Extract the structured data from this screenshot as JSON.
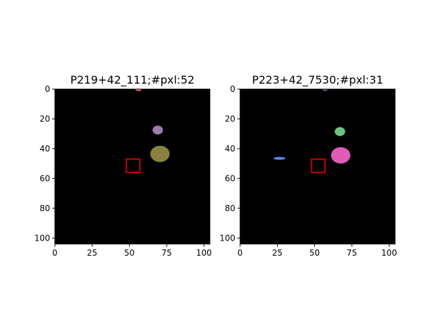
{
  "chart_data": [
    {
      "type": "heatmap",
      "title": "P219+42_111;#pxl:52",
      "xlim": [
        0,
        104
      ],
      "ylim": [
        104,
        0
      ],
      "xticks": [
        0,
        25,
        50,
        75,
        100
      ],
      "yticks": [
        0,
        20,
        40,
        60,
        80,
        100
      ],
      "background": "#000000",
      "blobs": [
        {
          "color": "#e06c6c",
          "cx": 56,
          "cy": 0.5,
          "rx": 2.0,
          "ry": 0.8
        },
        {
          "color": "#9a7fa8",
          "cx": 69,
          "cy": 27.5,
          "rx": 3.5,
          "ry": 3.0
        },
        {
          "color": "#8a8040",
          "cx": 70.5,
          "cy": 43.5,
          "rx": 6.5,
          "ry": 5.5
        }
      ],
      "marker": {
        "type": "rectangle",
        "color": "#cc0000",
        "x": [
          48,
          57
        ],
        "y": [
          47,
          56
        ]
      }
    },
    {
      "type": "heatmap",
      "title": "P223+42_7530;#pxl:31",
      "xlim": [
        0,
        104
      ],
      "ylim": [
        104,
        0
      ],
      "xticks": [
        0,
        25,
        50,
        75,
        100
      ],
      "yticks": [
        0,
        20,
        40,
        60,
        80,
        100
      ],
      "background": "#000000",
      "blobs": [
        {
          "color": "#4a6a9a",
          "cx": 57,
          "cy": 0.5,
          "rx": 1.5,
          "ry": 0.8
        },
        {
          "color": "#6cc47c",
          "cx": 67,
          "cy": 28.5,
          "rx": 3.5,
          "ry": 3.0
        },
        {
          "color": "#e05cb8",
          "cx": 67.5,
          "cy": 44.5,
          "rx": 6.5,
          "ry": 5.5
        },
        {
          "color": "#5b7be0",
          "cx": 26.5,
          "cy": 46.5,
          "rx": 4.0,
          "ry": 1.0
        }
      ],
      "marker": {
        "type": "rectangle",
        "color": "#cc0000",
        "x": [
          48,
          57
        ],
        "y": [
          47,
          56
        ]
      }
    }
  ]
}
